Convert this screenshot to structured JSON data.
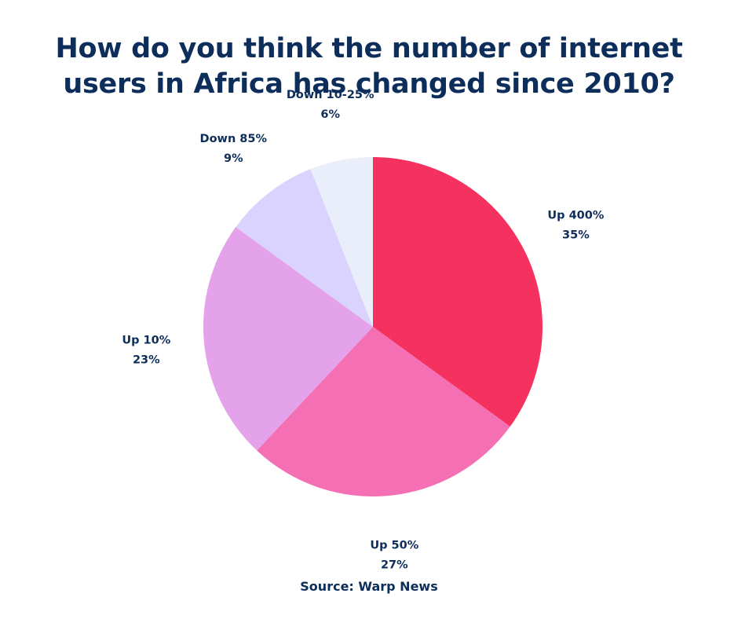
{
  "title_lines": [
    "How do you think the number of internet",
    "users in Africa has changed since 2010?"
  ],
  "source": "Source:  Warp News",
  "colors": {
    "text": "#0d2d5a",
    "background": "#ffffff"
  },
  "chart_data": {
    "type": "pie",
    "title": "How do you think the number of internet users in Africa has changed since 2010?",
    "start": "12 o'clock",
    "direction": "clockwise",
    "slices": [
      {
        "label": "Up 400%",
        "value": 35,
        "value_label": "35%",
        "color": "#f4315f"
      },
      {
        "label": "Up 50%",
        "value": 27,
        "value_label": "27%",
        "color": "#f56fb4"
      },
      {
        "label": "Up 10%",
        "value": 23,
        "value_label": "23%",
        "color": "#e3a2ea"
      },
      {
        "label": "Down 85%",
        "value": 9,
        "value_label": "9%",
        "color": "#d9d3fe"
      },
      {
        "label": "Down 10-25%",
        "value": 6,
        "value_label": "6%",
        "color": "#eaeefb"
      }
    ]
  }
}
